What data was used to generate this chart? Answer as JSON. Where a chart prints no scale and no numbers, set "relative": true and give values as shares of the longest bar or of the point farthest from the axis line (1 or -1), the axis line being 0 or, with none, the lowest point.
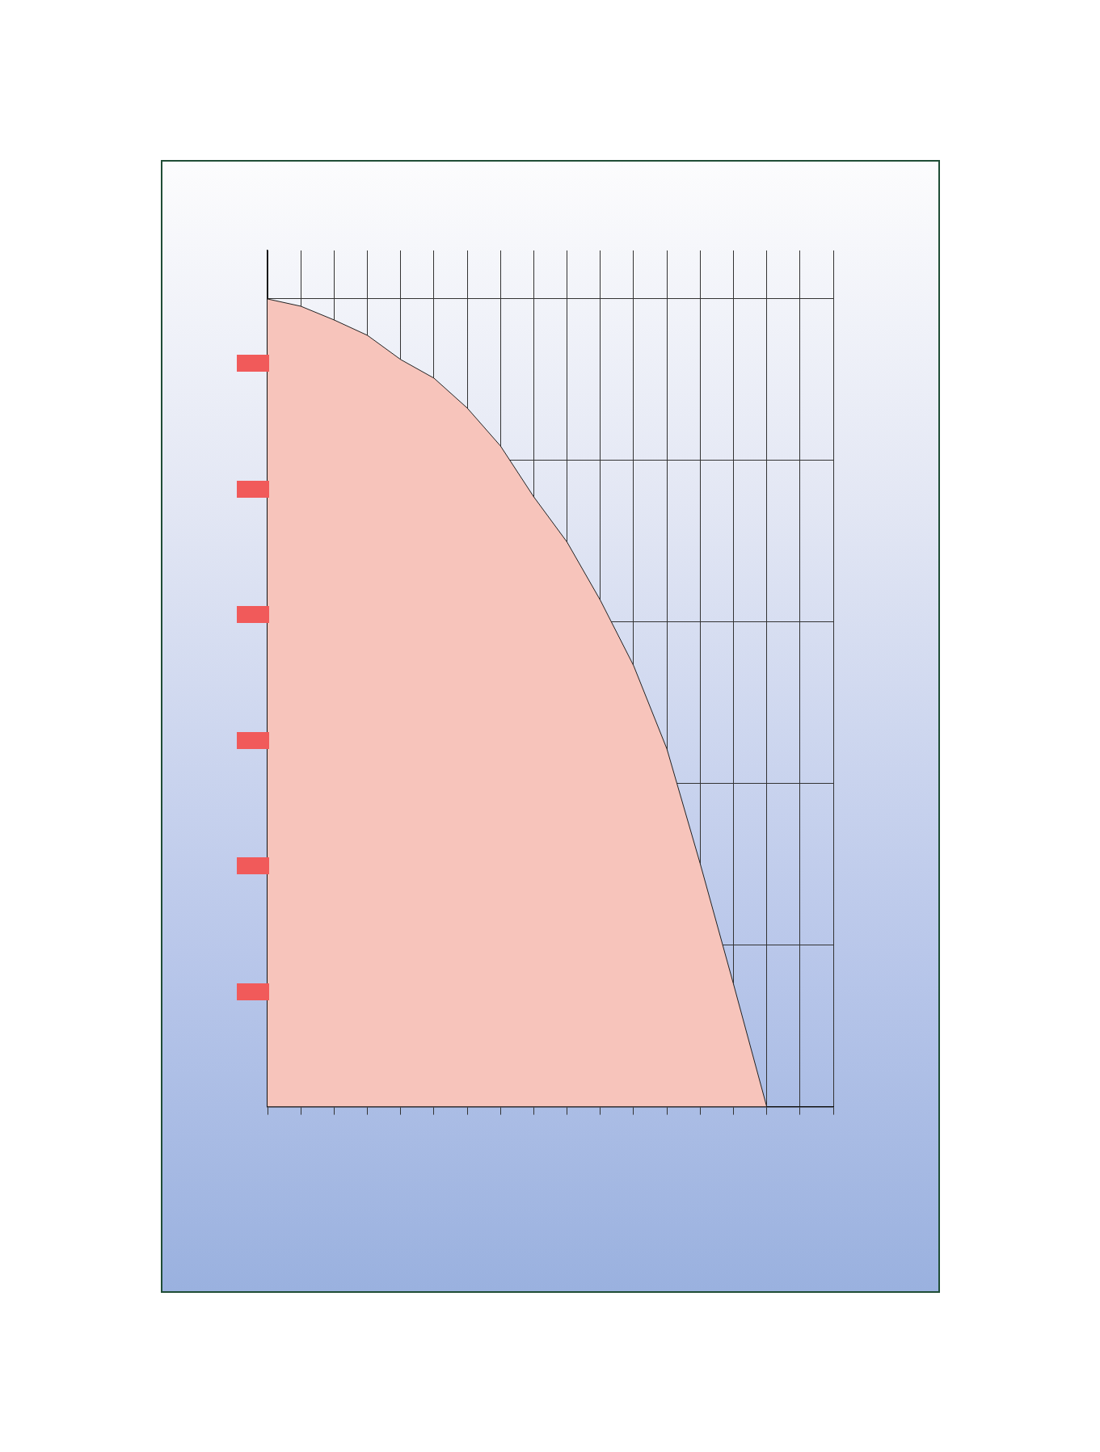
{
  "chart_data": {
    "type": "area",
    "relative": true,
    "grid": true,
    "color": "#f7c4bb",
    "categories": [
      null,
      null,
      null,
      null,
      null,
      null,
      null,
      null,
      null,
      null,
      null,
      null,
      null,
      null,
      null,
      null,
      null,
      null
    ],
    "values": [
      1,
      0.991,
      0.974,
      0.955,
      0.925,
      0.902,
      0.865,
      0.818,
      0.755,
      0.699,
      0.627,
      0.546,
      0.443,
      0.301,
      0.152,
      0,
      null,
      null
    ]
  }
}
